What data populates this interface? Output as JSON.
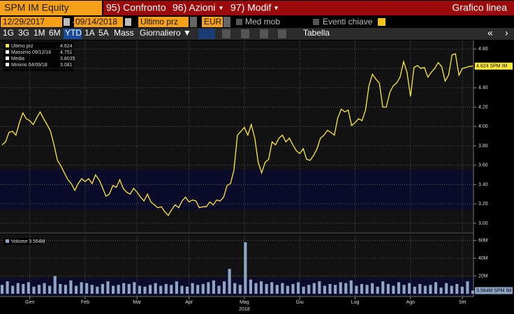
{
  "header": {
    "ticker": "SPM IM Equity",
    "menu": [
      "95) Confronto",
      "96) Azioni",
      "97) Modif"
    ],
    "view": "Grafico linea"
  },
  "controls": {
    "start": "12/29/2017",
    "dash": "-",
    "end": "09/14/2018",
    "field": "Ultimo prz",
    "currency": "EUR",
    "moving_avg": "Med mob",
    "events": "Eventi chiave"
  },
  "toolbar": {
    "ranges": [
      "1G",
      "3G",
      "1M",
      "6M",
      "YTD",
      "1A",
      "5A",
      "Mass"
    ],
    "active": "YTD",
    "frequency": "Giornaliero ▼",
    "table": "Tabella"
  },
  "chart_data": [
    {
      "type": "line",
      "color": "#ffea3d",
      "legend": [
        {
          "name": "Ultimo prz",
          "value": 4.624
        },
        {
          "name": "Massimo 09/12/18",
          "value": 4.751
        },
        {
          "name": "Media",
          "value": 3.8035
        },
        {
          "name": "Minimo 04/09/18",
          "value": 3.081
        }
      ],
      "last_tag": "4.624 SPM IM",
      "values": [
        3.81,
        3.84,
        3.94,
        3.95,
        3.91,
        4.04,
        4.14,
        4.08,
        4.06,
        4.02,
        4.09,
        4.15,
        4.08,
        4.02,
        3.95,
        3.81,
        3.65,
        3.59,
        3.52,
        3.45,
        3.41,
        3.34,
        3.41,
        3.46,
        3.43,
        3.46,
        3.41,
        3.5,
        3.45,
        3.37,
        3.28,
        3.3,
        3.39,
        3.37,
        3.45,
        3.36,
        3.32,
        3.3,
        3.36,
        3.32,
        3.27,
        3.23,
        3.3,
        3.22,
        3.19,
        3.16,
        3.17,
        3.12,
        3.081,
        3.14,
        3.19,
        3.16,
        3.23,
        3.27,
        3.22,
        3.24,
        3.23,
        3.16,
        3.17,
        3.17,
        3.22,
        3.19,
        3.24,
        3.23,
        3.27,
        3.39,
        3.41,
        3.55,
        3.91,
        3.95,
        3.99,
        3.91,
        4.02,
        3.88,
        3.63,
        3.52,
        3.63,
        3.66,
        3.84,
        3.81,
        3.88,
        3.91,
        3.84,
        3.88,
        3.81,
        3.75,
        3.72,
        3.77,
        3.66,
        3.65,
        3.7,
        3.77,
        3.88,
        3.91,
        3.96,
        3.94,
        3.91,
        4.09,
        4.18,
        4.15,
        4.17,
        4.01,
        4.04,
        4.08,
        4.06,
        4.17,
        4.42,
        4.54,
        4.49,
        4.45,
        4.2,
        4.2,
        4.35,
        4.42,
        4.45,
        4.51,
        4.67,
        4.56,
        4.31,
        4.61,
        4.63,
        4.6,
        4.61,
        4.51,
        4.56,
        4.6,
        4.66,
        4.62,
        4.47,
        4.53,
        4.74,
        4.751,
        4.53,
        4.6,
        4.61,
        4.62,
        4.624
      ],
      "xlim": [
        0,
        136
      ],
      "xticks": [
        {
          "value": 8,
          "label": "Gen"
        },
        {
          "value": 24,
          "label": "Feb"
        },
        {
          "value": 39,
          "label": "Mar"
        },
        {
          "value": 54,
          "label": "Apr"
        },
        {
          "value": 70,
          "label": "Mag"
        },
        {
          "value": 86,
          "label": "Giu"
        },
        {
          "value": 102,
          "label": "Lug"
        },
        {
          "value": 118,
          "label": "Ago"
        },
        {
          "value": 133,
          "label": "Set"
        }
      ],
      "x_year": "2018",
      "ylim": [
        2.92,
        4.86
      ],
      "yticks": [
        {
          "value": 3,
          "label": "3.00"
        },
        {
          "value": 3.2,
          "label": "3.20"
        },
        {
          "value": 3.4,
          "label": "3.40"
        },
        {
          "value": 3.6,
          "label": "3.60"
        },
        {
          "value": 3.8,
          "label": "3.80"
        },
        {
          "value": 4,
          "label": "4.00"
        },
        {
          "value": 4.2,
          "label": "4.20"
        },
        {
          "value": 4.4,
          "label": "4.40"
        },
        {
          "value": 4.6,
          "label": "4.60"
        },
        {
          "value": 4.8,
          "label": "4.80"
        }
      ],
      "grid": true
    },
    {
      "type": "bar",
      "color": "#8fa6c8",
      "legend": "Volume 3.564M",
      "last_tag": "3.564M SPM IM",
      "values": [
        10000000.0,
        14000000.0,
        9000000.0,
        12000000.0,
        11000000.0,
        13000000.0,
        8000000.0,
        10000000.0,
        12000000.0,
        9000000.0,
        20000000.0,
        11000000.0,
        10000000.0,
        15000000.0,
        9000000.0,
        13000000.0,
        12000000.0,
        10000000.0,
        8000000.0,
        11000000.0,
        14000000.0,
        9000000.0,
        10000000.0,
        12000000.0,
        11000000.0,
        13000000.0,
        9000000.0,
        8000000.0,
        10000000.0,
        12000000.0,
        9000000.0,
        11000000.0,
        10000000.0,
        14000000.0,
        9000000.0,
        8000000.0,
        12000000.0,
        10000000.0,
        11000000.0,
        13000000.0,
        15000000.0,
        9000000.0,
        14000000.0,
        28000000.0,
        12000000.0,
        10000000.0,
        58000000.0,
        16000000.0,
        12000000.0,
        14000000.0,
        11000000.0,
        13000000.0,
        10000000.0,
        12000000.0,
        9000000.0,
        11000000.0,
        13000000.0,
        8000000.0,
        10000000.0,
        12000000.0,
        14000000.0,
        9000000.0,
        11000000.0,
        10000000.0,
        13000000.0,
        12000000.0,
        15000000.0,
        9000000.0,
        11000000.0,
        10000000.0,
        12000000.0,
        8000000.0,
        14000000.0,
        11000000.0,
        9000000.0,
        13000000.0,
        10000000.0,
        12000000.0,
        8000000.0,
        11000000.0,
        9000000.0,
        10000000.0,
        13000000.0,
        7000000.0,
        12000000.0,
        9000000.0,
        11000000.0,
        8000000.0,
        14000000.0,
        3564000.0
      ],
      "xlim": [
        0,
        89
      ],
      "ylim": [
        0,
        66000000.0
      ],
      "yticks": [
        {
          "value": 20000000.0,
          "label": "20M"
        },
        {
          "value": 40000000.0,
          "label": "40M"
        },
        {
          "value": 60000000.0,
          "label": "60M"
        }
      ],
      "grid": true
    }
  ]
}
